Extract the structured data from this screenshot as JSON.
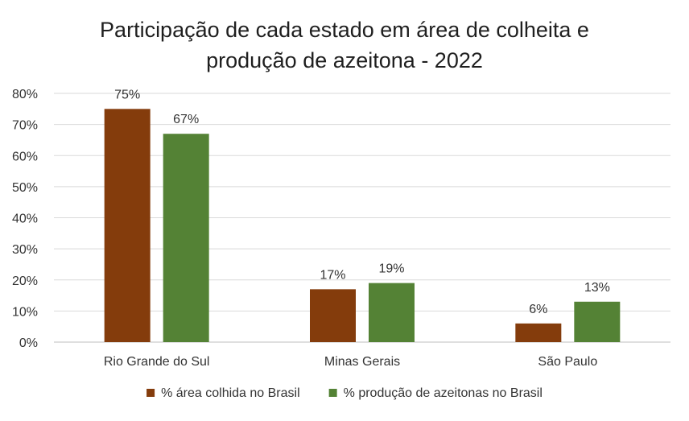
{
  "chart_data": {
    "type": "bar",
    "title_lines": [
      "Participação de cada estado em área de colheita e",
      "produção de azeitona - 2022"
    ],
    "categories": [
      "Rio Grande do Sul",
      "Minas Gerais",
      "São Paulo"
    ],
    "series": [
      {
        "name": "% área colhida no Brasil",
        "color": "#843c0c",
        "values": [
          75,
          17,
          6
        ],
        "labels": [
          "75%",
          "17%",
          "6%"
        ]
      },
      {
        "name": "% produção de azeitonas no Brasil",
        "color": "#548235",
        "values": [
          67,
          19,
          13
        ],
        "labels": [
          "67%",
          "19%",
          "13%"
        ]
      }
    ],
    "ylim": [
      0,
      80
    ],
    "yticks": [
      0,
      10,
      20,
      30,
      40,
      50,
      60,
      70,
      80
    ],
    "ytick_labels": [
      "0%",
      "10%",
      "20%",
      "30%",
      "40%",
      "50%",
      "60%",
      "70%",
      "80%"
    ],
    "grid": true,
    "legend_position": "bottom"
  }
}
